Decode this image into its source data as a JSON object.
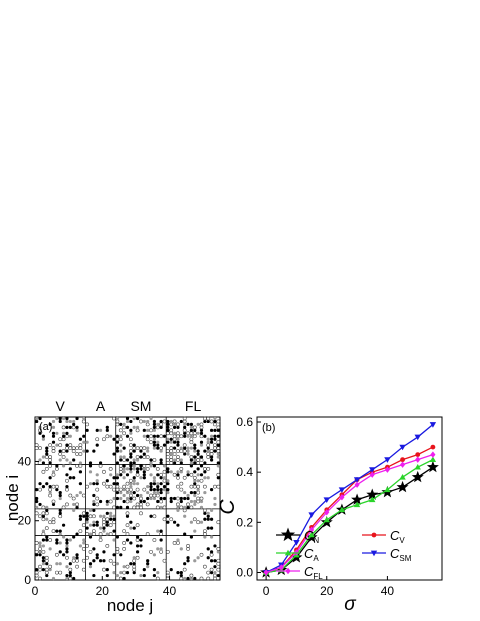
{
  "chart_data": [
    {
      "type": "scatter",
      "panel_label": "(a)",
      "xlabel": "node j",
      "ylabel": "node i",
      "group_labels": [
        "V",
        "A",
        "SM",
        "FL"
      ],
      "xticks": [
        "0",
        "20",
        "40"
      ],
      "yticks": [
        "0",
        "20",
        "40"
      ],
      "xlim": [
        0,
        55
      ],
      "ylim": [
        0,
        55
      ],
      "block_boundaries": [
        15,
        24,
        39
      ]
    },
    {
      "type": "line",
      "panel_label": "(b)",
      "xlabel": "σ",
      "ylabel": "C",
      "xlim": [
        -3,
        58
      ],
      "ylim": [
        -0.03,
        0.62
      ],
      "xticks": [
        "0",
        "20",
        "40"
      ],
      "yticks": [
        "0.0",
        "0.2",
        "0.4",
        "0.6"
      ],
      "x": [
        0,
        5,
        10,
        15,
        20,
        25,
        30,
        35,
        40,
        45,
        50,
        55
      ],
      "series": [
        {
          "name": "C",
          "sub": "N",
          "color": "#000000",
          "marker": "star",
          "values": [
            0.0,
            0.01,
            0.06,
            0.14,
            0.2,
            0.25,
            0.29,
            0.31,
            0.32,
            0.34,
            0.38,
            0.42
          ]
        },
        {
          "name": "C",
          "sub": "V",
          "color": "#e8141c",
          "marker": "circle",
          "values": [
            0.0,
            0.02,
            0.09,
            0.18,
            0.25,
            0.31,
            0.37,
            0.4,
            0.42,
            0.45,
            0.47,
            0.5
          ]
        },
        {
          "name": "C",
          "sub": "A",
          "color": "#2ad42a",
          "marker": "triangle-up",
          "values": [
            0.0,
            0.01,
            0.07,
            0.15,
            0.21,
            0.25,
            0.27,
            0.29,
            0.33,
            0.38,
            0.42,
            0.45
          ]
        },
        {
          "name": "C",
          "sub": "SM",
          "color": "#1a1ae0",
          "marker": "triangle-down",
          "values": [
            0.0,
            0.03,
            0.12,
            0.23,
            0.29,
            0.33,
            0.37,
            0.41,
            0.45,
            0.5,
            0.54,
            0.59
          ]
        },
        {
          "name": "C",
          "sub": "FL",
          "color": "#ee20ee",
          "marker": "diamond",
          "values": [
            0.0,
            0.02,
            0.08,
            0.17,
            0.24,
            0.3,
            0.35,
            0.39,
            0.41,
            0.43,
            0.45,
            0.47
          ]
        }
      ],
      "legend": "bottom-right"
    }
  ]
}
